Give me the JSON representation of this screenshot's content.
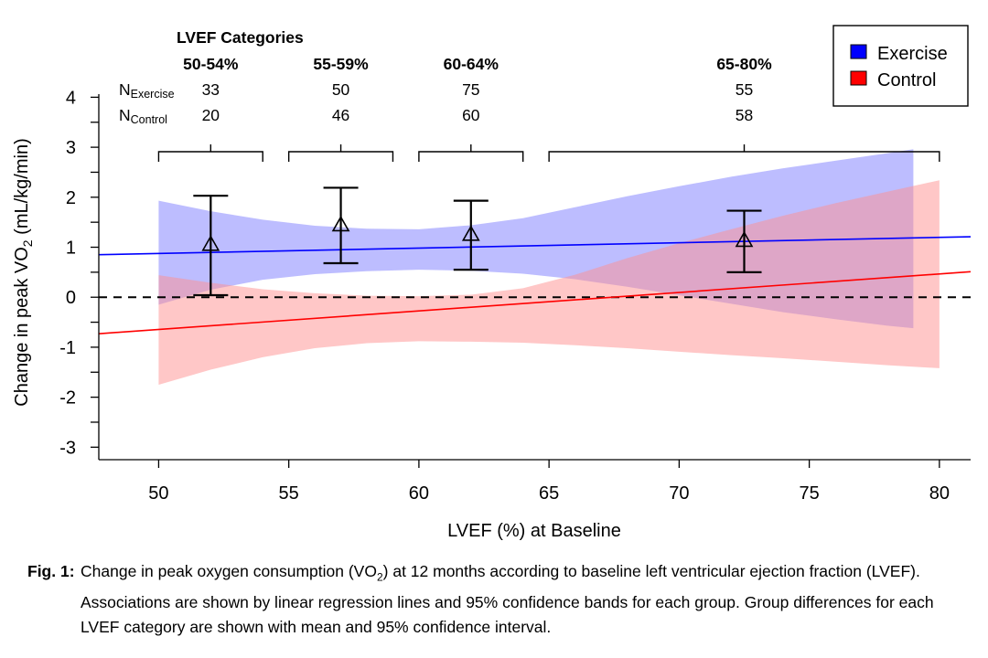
{
  "chart_data": {
    "type": "line",
    "xlabel": "LVEF (%) at Baseline",
    "ylabel_parts": {
      "prefix": "Change in  peak VO",
      "sub": "2",
      "suffix": " (mL/kg/min)"
    },
    "xlim": [
      47.7,
      81.2
    ],
    "ylim": [
      -3.25,
      4.3
    ],
    "x_ticks": [
      50,
      55,
      60,
      65,
      70,
      75,
      80
    ],
    "y_ticks": [
      -3,
      -2,
      -1,
      0,
      1,
      2,
      3,
      4
    ],
    "x_tick_labels": [
      "50",
      "55",
      "60",
      "65",
      "70",
      "75",
      "80"
    ],
    "y_tick_labels": [
      "-3",
      "-2",
      "-1",
      "0",
      "1",
      "2",
      "3",
      "4"
    ],
    "reference_line": {
      "y": 0,
      "style": "dashed"
    },
    "legend": {
      "position": "top-right",
      "entries": [
        {
          "name": "Exercise",
          "color": "#0000ff"
        },
        {
          "name": "Control",
          "color": "#ff0000"
        }
      ]
    },
    "series": [
      {
        "name": "Exercise",
        "color": "#0000ff",
        "band_color": "#7b7bff",
        "line": {
          "x": [
            47.7,
            81.2
          ],
          "y": [
            0.85,
            1.21
          ]
        },
        "band": {
          "x": [
            50,
            52,
            54,
            56,
            58,
            60,
            62,
            64,
            66,
            68,
            70,
            72,
            74,
            76,
            78,
            79
          ],
          "lower": [
            -0.15,
            0.15,
            0.35,
            0.46,
            0.52,
            0.55,
            0.53,
            0.47,
            0.36,
            0.21,
            0.04,
            -0.13,
            -0.3,
            -0.44,
            -0.57,
            -0.62
          ],
          "upper": [
            1.93,
            1.72,
            1.55,
            1.43,
            1.37,
            1.36,
            1.44,
            1.58,
            1.8,
            2.02,
            2.22,
            2.41,
            2.58,
            2.73,
            2.88,
            2.96
          ]
        }
      },
      {
        "name": "Control",
        "color": "#ff0000",
        "band_color": "#ff8f8f",
        "line": {
          "x": [
            47.7,
            81.2
          ],
          "y": [
            -0.73,
            0.51
          ]
        },
        "band": {
          "x": [
            50,
            52,
            54,
            56,
            58,
            60,
            62,
            64,
            66,
            68,
            70,
            72,
            74,
            76,
            78,
            80
          ],
          "lower": [
            -1.75,
            -1.45,
            -1.2,
            -1.02,
            -0.92,
            -0.88,
            -0.89,
            -0.91,
            -0.96,
            -1.02,
            -1.09,
            -1.16,
            -1.22,
            -1.29,
            -1.36,
            -1.42
          ],
          "upper": [
            0.44,
            0.29,
            0.16,
            0.08,
            0.03,
            0.02,
            0.05,
            0.18,
            0.45,
            0.78,
            1.08,
            1.36,
            1.63,
            1.88,
            2.11,
            2.34
          ]
        }
      }
    ],
    "group_differences": {
      "marker": "triangle",
      "points": [
        {
          "category": "50-54%",
          "x": 52.0,
          "mean": 1.05,
          "lower": 0.04,
          "upper": 2.03
        },
        {
          "category": "55-59%",
          "x": 57.0,
          "mean": 1.44,
          "lower": 0.68,
          "upper": 2.19
        },
        {
          "category": "60-64%",
          "x": 62.0,
          "mean": 1.25,
          "lower": 0.55,
          "upper": 1.93
        },
        {
          "category": "65-80%",
          "x": 72.5,
          "mean": 1.13,
          "lower": 0.5,
          "upper": 1.73
        }
      ]
    },
    "categories_header": {
      "title": "LVEF Categories",
      "n_exercise_label": {
        "main": "N",
        "sub": "Exercise"
      },
      "n_control_label": {
        "main": "N",
        "sub": "Control"
      },
      "categories": [
        {
          "label": "50-54%",
          "center": 52.0,
          "range": [
            50,
            54
          ],
          "n_exercise": "33",
          "n_control": "20"
        },
        {
          "label": "55-59%",
          "center": 57.0,
          "range": [
            55,
            59
          ],
          "n_exercise": "50",
          "n_control": "46"
        },
        {
          "label": "60-64%",
          "center": 62.0,
          "range": [
            60,
            64
          ],
          "n_exercise": "75",
          "n_control": "60"
        },
        {
          "label": "65-80%",
          "center": 72.5,
          "range": [
            65,
            80
          ],
          "n_exercise": "55",
          "n_control": "58"
        }
      ]
    }
  },
  "caption": {
    "label": "Fig. 1:",
    "text_before": "Change in peak oxygen consumption (VO",
    "text_sub": "2",
    "text_after": ") at 12 months according to baseline left ventricular ejection fraction (LVEF). Associations are shown by linear regression lines and 95% confidence bands for each group. Group differences for each LVEF category are shown with mean and 95% confidence interval."
  }
}
